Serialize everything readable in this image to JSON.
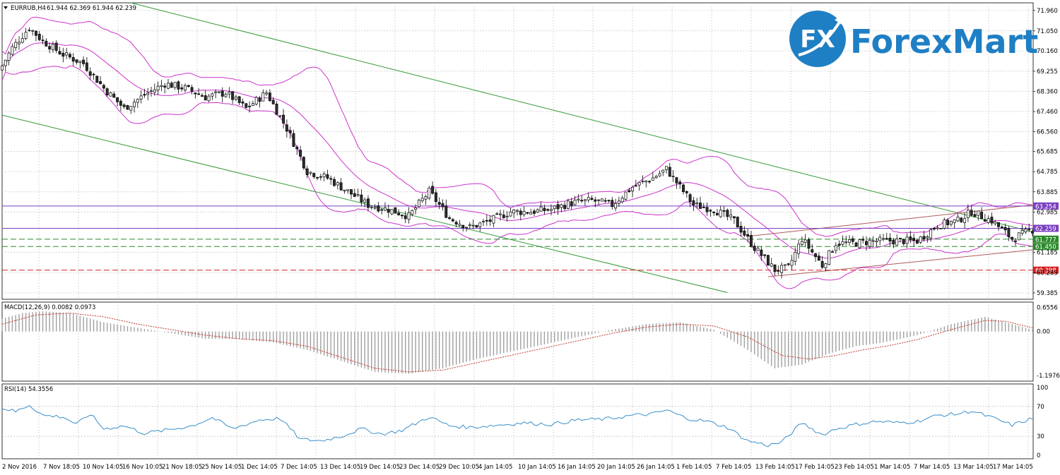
{
  "header": {
    "symbol_text": "EURRUB,H4",
    "ohlc_text": "61.944 62.369 61.944 62.239"
  },
  "logo": {
    "mark_text": "FX",
    "name": "ForexMart",
    "brand_color": "#1f7fc4"
  },
  "colors": {
    "bull_fill": "#ffffff",
    "bear_fill": "#2e2e2e",
    "bollinger": "#cc33cc",
    "channel": "#339933",
    "wedge": "#b05a5a",
    "level_purple": "#7b3fbf",
    "level_green": "#2a8a2a",
    "level_red": "#d62020",
    "macd_hist": "#a0a0a0",
    "macd_signal": "#c0392b",
    "rsi_line": "#3a8fc9"
  },
  "chart_data": [
    {
      "type": "candlestick",
      "title": "EURRUB,H4",
      "ylim": [
        59.1,
        72.3
      ],
      "y_ticks": [
        "71.960",
        "71.050",
        "70.160",
        "69.255",
        "68.360",
        "67.460",
        "66.560",
        "65.685",
        "64.785",
        "63.885",
        "62.985",
        "61.185",
        "60.285",
        "59.385"
      ],
      "x_labels": [
        "2 Nov 2016",
        "7 Nov 18:05",
        "10 Nov 14:05",
        "16 Nov 10:05",
        "21 Nov 18:05",
        "25 Nov 14:05",
        "1 Dec 14:05",
        "7 Dec 14:05",
        "13 Dec 14:05",
        "19 Dec 14:05",
        "23 Dec 14:05",
        "29 Dec 10:05",
        "4 Jan 14:05",
        "10 Jan 14:05",
        "16 Jan 14:05",
        "20 Jan 14:05",
        "26 Jan 14:05",
        "1 Feb 14:05",
        "7 Feb 14:05",
        "13 Feb 14:05",
        "17 Feb 14:05",
        "23 Feb 14:05",
        "1 Mar 14:05",
        "7 Mar 14:05",
        "13 Mar 14:05",
        "17 Mar 14:05"
      ],
      "close_anchors": [
        [
          0,
          69.5
        ],
        [
          3,
          70.3
        ],
        [
          8,
          71.2
        ],
        [
          12,
          70.6
        ],
        [
          18,
          70.0
        ],
        [
          24,
          69.6
        ],
        [
          30,
          68.5
        ],
        [
          36,
          67.6
        ],
        [
          42,
          68.2
        ],
        [
          48,
          68.7
        ],
        [
          54,
          68.5
        ],
        [
          60,
          68.1
        ],
        [
          66,
          68.3
        ],
        [
          72,
          67.6
        ],
        [
          78,
          68.3
        ],
        [
          84,
          66.7
        ],
        [
          90,
          64.8
        ],
        [
          96,
          64.5
        ],
        [
          102,
          63.9
        ],
        [
          108,
          63.3
        ],
        [
          114,
          63.1
        ],
        [
          120,
          62.8
        ],
        [
          126,
          63.9
        ],
        [
          132,
          62.7
        ],
        [
          138,
          62.3
        ],
        [
          144,
          62.6
        ],
        [
          150,
          63.0
        ],
        [
          156,
          63.0
        ],
        [
          162,
          63.1
        ],
        [
          168,
          63.4
        ],
        [
          174,
          63.5
        ],
        [
          180,
          63.3
        ],
        [
          186,
          64.1
        ],
        [
          192,
          64.5
        ],
        [
          196,
          64.9
        ],
        [
          204,
          63.3
        ],
        [
          210,
          63.1
        ],
        [
          216,
          62.6
        ],
        [
          222,
          61.4
        ],
        [
          228,
          60.4
        ],
        [
          232,
          60.5
        ],
        [
          236,
          61.8
        ],
        [
          242,
          60.6
        ],
        [
          246,
          61.6
        ],
        [
          252,
          61.6
        ],
        [
          258,
          61.7
        ],
        [
          264,
          61.7
        ],
        [
          270,
          61.7
        ],
        [
          276,
          62.4
        ],
        [
          282,
          62.6
        ],
        [
          286,
          63.0
        ],
        [
          292,
          62.6
        ],
        [
          298,
          61.8
        ],
        [
          304,
          62.2
        ]
      ],
      "levels": [
        {
          "label": "63.254",
          "value": 63.254,
          "style": "solid",
          "color": "#7b3fbf"
        },
        {
          "label": "62.259",
          "value": 62.259,
          "style": "solid",
          "color": "#7b3fbf"
        },
        {
          "label": "61.777",
          "value": 61.777,
          "style": "dashed",
          "color": "#2a8a2a"
        },
        {
          "label": "61.450",
          "value": 61.45,
          "style": "dashed",
          "color": "#2a8a2a"
        },
        {
          "label": "60.398",
          "value": 60.398,
          "style": "dashed",
          "color": "#d62020"
        }
      ],
      "channel": {
        "upper": [
          [
            38,
            72.3
          ],
          [
            304,
            62.1
          ]
        ],
        "lower": [
          [
            0,
            67.3
          ],
          [
            214,
            59.4
          ]
        ]
      },
      "wedge": {
        "upper": [
          [
            220,
            61.9
          ],
          [
            304,
            63.3
          ]
        ],
        "lower": [
          [
            226,
            60.1
          ],
          [
            304,
            61.3
          ]
        ]
      }
    },
    {
      "type": "histogram+line",
      "title": "MACD(12,26,9) 0.0082 0.0973",
      "ylim": [
        -1.35,
        0.8
      ],
      "y_ticks": [
        "0.6556",
        "0.00",
        "-1.1976"
      ],
      "hist_anchors": [
        [
          0,
          0.35
        ],
        [
          6,
          0.5
        ],
        [
          12,
          0.55
        ],
        [
          20,
          0.5
        ],
        [
          30,
          0.25
        ],
        [
          40,
          0.1
        ],
        [
          50,
          -0.05
        ],
        [
          60,
          -0.2
        ],
        [
          70,
          -0.2
        ],
        [
          80,
          -0.3
        ],
        [
          90,
          -0.5
        ],
        [
          100,
          -0.8
        ],
        [
          110,
          -1.1
        ],
        [
          120,
          -1.15
        ],
        [
          130,
          -1.0
        ],
        [
          140,
          -0.75
        ],
        [
          150,
          -0.55
        ],
        [
          160,
          -0.35
        ],
        [
          170,
          -0.15
        ],
        [
          180,
          0.05
        ],
        [
          190,
          0.2
        ],
        [
          200,
          0.25
        ],
        [
          210,
          0.05
        ],
        [
          220,
          -0.5
        ],
        [
          228,
          -1.0
        ],
        [
          236,
          -0.9
        ],
        [
          244,
          -0.6
        ],
        [
          252,
          -0.4
        ],
        [
          260,
          -0.3
        ],
        [
          270,
          -0.1
        ],
        [
          280,
          0.2
        ],
        [
          290,
          0.4
        ],
        [
          296,
          0.25
        ],
        [
          304,
          0.05
        ]
      ],
      "signal_anchors": [
        [
          0,
          0.2
        ],
        [
          10,
          0.45
        ],
        [
          20,
          0.5
        ],
        [
          30,
          0.4
        ],
        [
          40,
          0.2
        ],
        [
          50,
          0.05
        ],
        [
          60,
          -0.1
        ],
        [
          70,
          -0.2
        ],
        [
          80,
          -0.25
        ],
        [
          90,
          -0.4
        ],
        [
          100,
          -0.7
        ],
        [
          110,
          -1.0
        ],
        [
          120,
          -1.1
        ],
        [
          130,
          -1.05
        ],
        [
          140,
          -0.85
        ],
        [
          150,
          -0.65
        ],
        [
          160,
          -0.45
        ],
        [
          170,
          -0.25
        ],
        [
          180,
          -0.05
        ],
        [
          190,
          0.12
        ],
        [
          200,
          0.2
        ],
        [
          210,
          0.15
        ],
        [
          220,
          -0.15
        ],
        [
          230,
          -0.65
        ],
        [
          238,
          -0.75
        ],
        [
          246,
          -0.65
        ],
        [
          254,
          -0.5
        ],
        [
          262,
          -0.38
        ],
        [
          270,
          -0.22
        ],
        [
          280,
          0.05
        ],
        [
          290,
          0.3
        ],
        [
          296,
          0.28
        ],
        [
          304,
          0.1
        ]
      ]
    },
    {
      "type": "line",
      "title": "RSI(14) 54.3556",
      "ylim": [
        0,
        100
      ],
      "y_ticks": [
        "100",
        "70",
        "30",
        "0"
      ],
      "y_tick_values": [
        100,
        70,
        30,
        0
      ],
      "rsi_anchors": [
        [
          0,
          68
        ],
        [
          4,
          63
        ],
        [
          8,
          72
        ],
        [
          12,
          58
        ],
        [
          18,
          56
        ],
        [
          22,
          46
        ],
        [
          26,
          60
        ],
        [
          30,
          40
        ],
        [
          36,
          44
        ],
        [
          42,
          34
        ],
        [
          48,
          38
        ],
        [
          56,
          44
        ],
        [
          62,
          55
        ],
        [
          68,
          40
        ],
        [
          76,
          52
        ],
        [
          82,
          54
        ],
        [
          88,
          26
        ],
        [
          94,
          24
        ],
        [
          100,
          30
        ],
        [
          106,
          40
        ],
        [
          112,
          33
        ],
        [
          118,
          38
        ],
        [
          126,
          56
        ],
        [
          132,
          44
        ],
        [
          138,
          42
        ],
        [
          146,
          45
        ],
        [
          154,
          48
        ],
        [
          162,
          46
        ],
        [
          170,
          52
        ],
        [
          178,
          53
        ],
        [
          186,
          58
        ],
        [
          192,
          60
        ],
        [
          196,
          65
        ],
        [
          202,
          54
        ],
        [
          208,
          50
        ],
        [
          214,
          42
        ],
        [
          220,
          24
        ],
        [
          226,
          18
        ],
        [
          230,
          22
        ],
        [
          236,
          48
        ],
        [
          242,
          32
        ],
        [
          246,
          40
        ],
        [
          252,
          46
        ],
        [
          258,
          50
        ],
        [
          264,
          48
        ],
        [
          270,
          50
        ],
        [
          276,
          58
        ],
        [
          282,
          60
        ],
        [
          286,
          64
        ],
        [
          292,
          55
        ],
        [
          298,
          45
        ],
        [
          304,
          54
        ]
      ]
    }
  ]
}
